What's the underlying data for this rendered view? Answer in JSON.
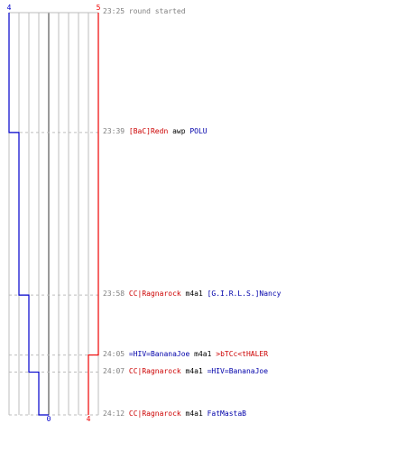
{
  "colors": {
    "blue_team": "#0000cc",
    "red_team": "#ee0000",
    "grid": "#bdbdbd",
    "center_line": "#808080",
    "dash": "#bdbdbd",
    "time_text": "#808080"
  },
  "chart_data": {
    "type": "line",
    "description_free": true,
    "time_start": "23:25",
    "time_end": "24:12",
    "y_axis": "round time (mm:ss)",
    "x_axis_labels": {
      "blue_top": "4",
      "red_top": "5",
      "blue_bottom": "0",
      "red_bottom": "4"
    },
    "series": [
      {
        "name": "",
        "team": "blue",
        "points": [
          {
            "t": "23:25",
            "alive": 4
          },
          {
            "t": "23:39",
            "alive": 3
          },
          {
            "t": "23:58",
            "alive": 2
          },
          {
            "t": "24:07",
            "alive": 1
          },
          {
            "t": "24:12",
            "alive": 0
          }
        ]
      },
      {
        "name": "",
        "team": "red",
        "points": [
          {
            "t": "23:25",
            "alive": 5
          },
          {
            "t": "24:05",
            "alive": 4
          },
          {
            "t": "24:12",
            "alive": 4
          }
        ]
      }
    ],
    "events": [
      {
        "time": "23:25",
        "parts": [
          {
            "text": "round started",
            "team": "time"
          }
        ]
      },
      {
        "time": "23:39",
        "parts": [
          {
            "text": "[BaC]Redn",
            "team": "red"
          },
          {
            "text": " awp ",
            "team": "plain"
          },
          {
            "text": "POLU",
            "team": "blue"
          }
        ]
      },
      {
        "time": "23:58",
        "parts": [
          {
            "text": "CC|Ragnarock",
            "team": "red"
          },
          {
            "text": " m4a1 ",
            "team": "plain"
          },
          {
            "text": "[G.I.R.L.S.]Nancy",
            "team": "blue"
          }
        ]
      },
      {
        "time": "24:05",
        "parts": [
          {
            "text": "=HIV=BananaJoe",
            "team": "blue"
          },
          {
            "text": " m4a1 ",
            "team": "plain"
          },
          {
            "text": ">bTCc<tHALER",
            "team": "red"
          }
        ]
      },
      {
        "time": "24:07",
        "parts": [
          {
            "text": "CC|Ragnarock",
            "team": "red"
          },
          {
            "text": " m4a1 ",
            "team": "plain"
          },
          {
            "text": "=HIV=BananaJoe",
            "team": "blue"
          }
        ]
      },
      {
        "time": "24:12",
        "parts": [
          {
            "text": "CC|Ragnarock",
            "team": "red"
          },
          {
            "text": " m4a1 ",
            "team": "plain"
          },
          {
            "text": "FatMastaB",
            "team": "blue"
          }
        ]
      }
    ]
  }
}
